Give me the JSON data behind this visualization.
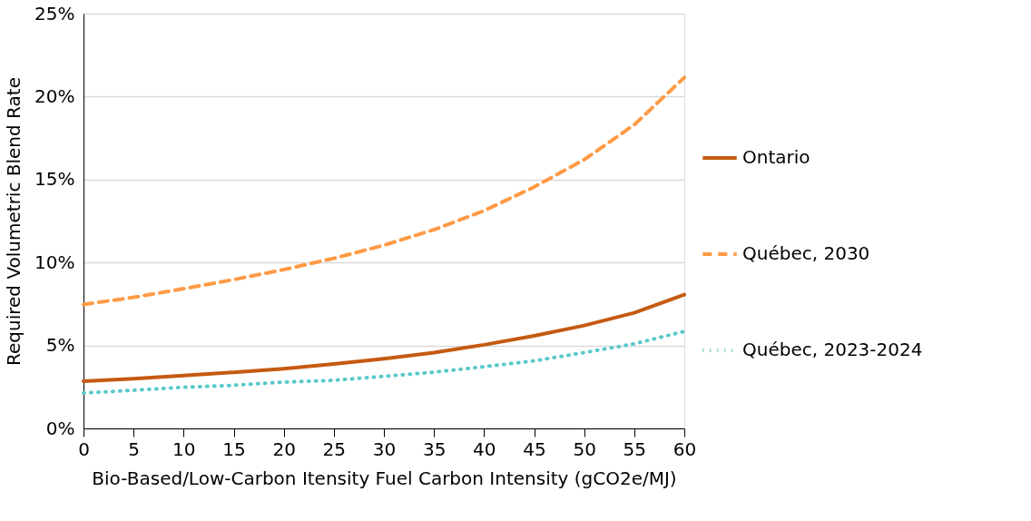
{
  "chart_data": {
    "type": "line",
    "xlabel": "Bio-Based/Low-Carbon Itensity Fuel Carbon Intensity (gCO2e/MJ)",
    "ylabel": "Required Volumetric Blend Rate",
    "x": [
      0,
      5,
      10,
      15,
      20,
      25,
      30,
      35,
      40,
      45,
      50,
      55,
      60
    ],
    "series": [
      {
        "name": "Ontario",
        "color": "#c55a11",
        "line_style": "solid",
        "values": [
          2.85,
          3.0,
          3.19,
          3.38,
          3.6,
          3.88,
          4.2,
          4.57,
          5.04,
          5.58,
          6.2,
          6.97,
          8.06
        ]
      },
      {
        "name": "Québec, 2030",
        "color": "#ff9a45",
        "line_style": "dashed",
        "values": [
          7.47,
          7.9,
          8.42,
          8.97,
          9.57,
          10.25,
          11.04,
          11.98,
          13.12,
          14.55,
          16.2,
          18.3,
          21.15
        ]
      },
      {
        "name": "Québec, 2023-2024",
        "color": "#5bc8c8",
        "line_style": "dotted",
        "values": [
          2.13,
          2.3,
          2.48,
          2.6,
          2.79,
          2.9,
          3.14,
          3.39,
          3.72,
          4.07,
          4.57,
          5.1,
          5.85
        ]
      }
    ],
    "xlim": [
      0,
      60
    ],
    "xticks": [
      0,
      5,
      10,
      15,
      20,
      25,
      30,
      35,
      40,
      45,
      50,
      55,
      60
    ],
    "ylim": [
      0,
      25
    ],
    "yticks": [
      {
        "value": 0,
        "label": "0%"
      },
      {
        "value": 5,
        "label": "5%"
      },
      {
        "value": 10,
        "label": "10%"
      },
      {
        "value": 15,
        "label": "15%"
      },
      {
        "value": 20,
        "label": "20%"
      },
      {
        "value": 25,
        "label": "25%"
      }
    ],
    "grid": "y",
    "legend": "right",
    "marker": "none"
  }
}
